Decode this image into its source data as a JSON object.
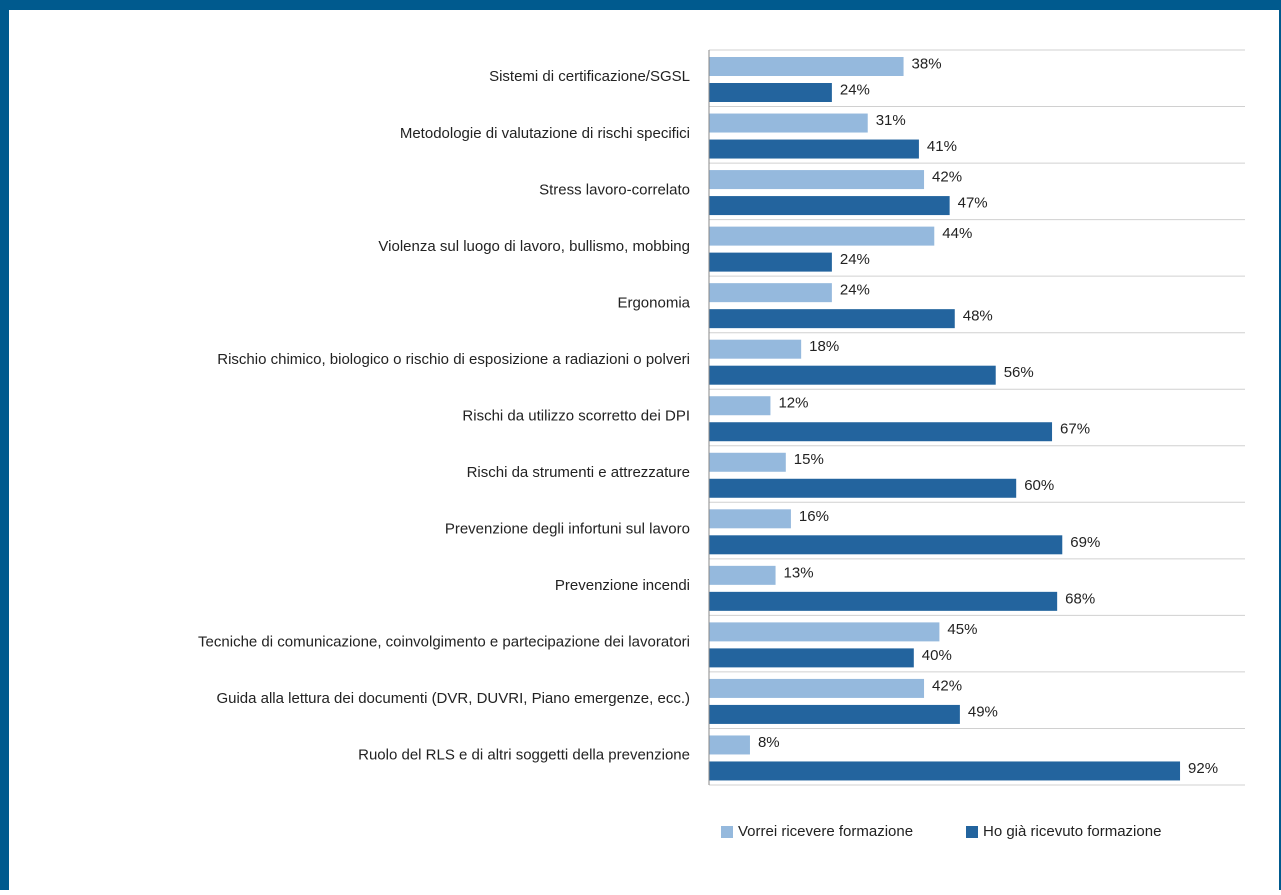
{
  "chart_data": {
    "type": "bar",
    "orientation": "horizontal",
    "categories": [
      "Sistemi di certificazione/SGSL",
      "Metodologie di valutazione di rischi specifici",
      "Stress lavoro-correlato",
      "Violenza sul luogo di lavoro, bullismo, mobbing",
      "Ergonomia",
      "Rischio chimico, biologico o rischio di esposizione a radiazioni o polveri",
      "Rischi da utilizzo scorretto dei DPI",
      "Rischi da strumenti e attrezzature",
      "Prevenzione degli infortuni sul lavoro",
      "Prevenzione incendi",
      "Tecniche di comunicazione, coinvolgimento e partecipazione dei lavoratori",
      "Guida alla lettura dei documenti (DVR, DUVRI, Piano emergenze, ecc.)",
      "Ruolo del RLS e di altri soggetti della prevenzione"
    ],
    "series": [
      {
        "name": "Vorrei ricevere formazione",
        "color": "#95b9dd",
        "values": [
          38,
          31,
          42,
          44,
          24,
          18,
          12,
          15,
          16,
          13,
          45,
          42,
          8
        ],
        "value_labels": [
          "38%",
          "31%",
          "42%",
          "44%",
          "24%",
          "18%",
          "12%",
          "15%",
          "16%",
          "13%",
          "45%",
          "42%",
          "8%"
        ]
      },
      {
        "name": "Ho già ricevuto formazione",
        "color": "#23649e",
        "values": [
          24,
          41,
          47,
          24,
          48,
          56,
          67,
          60,
          69,
          68,
          40,
          49,
          92
        ],
        "value_labels": [
          "24%",
          "41%",
          "47%",
          "24%",
          "48%",
          "56%",
          "67%",
          "60%",
          "69%",
          "68%",
          "40%",
          "49%",
          "92%"
        ]
      }
    ],
    "xlim": [
      0,
      100
    ],
    "legend": "bottom"
  }
}
